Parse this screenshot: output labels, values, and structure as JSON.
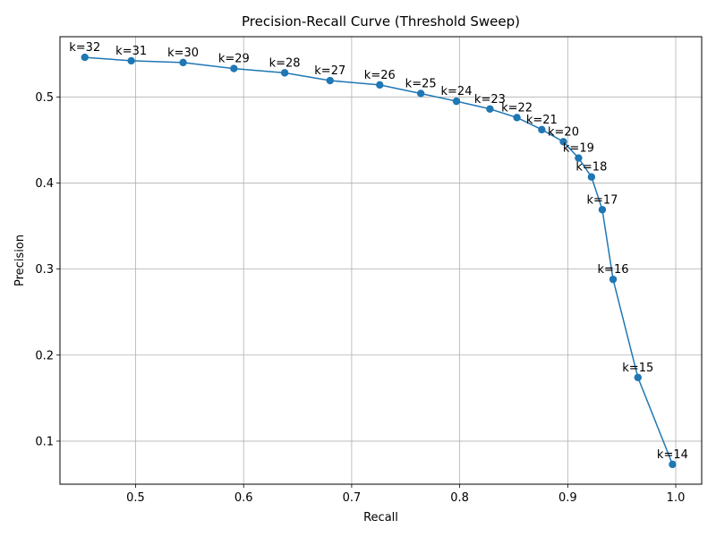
{
  "chart_data": {
    "type": "line",
    "title": "Precision-Recall Curve (Threshold Sweep)",
    "xlabel": "Recall",
    "ylabel": "Precision",
    "xlim": [
      0.43,
      1.024
    ],
    "ylim": [
      0.05,
      0.57
    ],
    "xticks": [
      0.5,
      0.6,
      0.7,
      0.8,
      0.9,
      1.0
    ],
    "xtick_labels": [
      "0.5",
      "0.6",
      "0.7",
      "0.8",
      "0.9",
      "1.0"
    ],
    "yticks": [
      0.1,
      0.2,
      0.3,
      0.4,
      0.5
    ],
    "ytick_labels": [
      "0.1",
      "0.2",
      "0.3",
      "0.4",
      "0.5"
    ],
    "grid": true,
    "line_color": "#1f77b4",
    "points": [
      {
        "label": "k=32",
        "recall": 0.453,
        "precision": 0.546
      },
      {
        "label": "k=31",
        "recall": 0.496,
        "precision": 0.542
      },
      {
        "label": "k=30",
        "recall": 0.544,
        "precision": 0.54
      },
      {
        "label": "k=29",
        "recall": 0.591,
        "precision": 0.533
      },
      {
        "label": "k=28",
        "recall": 0.638,
        "precision": 0.528
      },
      {
        "label": "k=27",
        "recall": 0.68,
        "precision": 0.519
      },
      {
        "label": "k=26",
        "recall": 0.726,
        "precision": 0.514
      },
      {
        "label": "k=25",
        "recall": 0.764,
        "precision": 0.504
      },
      {
        "label": "k=24",
        "recall": 0.797,
        "precision": 0.495
      },
      {
        "label": "k=23",
        "recall": 0.828,
        "precision": 0.486
      },
      {
        "label": "k=22",
        "recall": 0.853,
        "precision": 0.476
      },
      {
        "label": "k=21",
        "recall": 0.876,
        "precision": 0.462
      },
      {
        "label": "k=20",
        "recall": 0.896,
        "precision": 0.448
      },
      {
        "label": "k=19",
        "recall": 0.91,
        "precision": 0.429
      },
      {
        "label": "k=18",
        "recall": 0.922,
        "precision": 0.407
      },
      {
        "label": "k=17",
        "recall": 0.932,
        "precision": 0.369
      },
      {
        "label": "k=16",
        "recall": 0.942,
        "precision": 0.288
      },
      {
        "label": "k=15",
        "recall": 0.965,
        "precision": 0.174
      },
      {
        "label": "k=14",
        "recall": 0.997,
        "precision": 0.073
      }
    ]
  }
}
